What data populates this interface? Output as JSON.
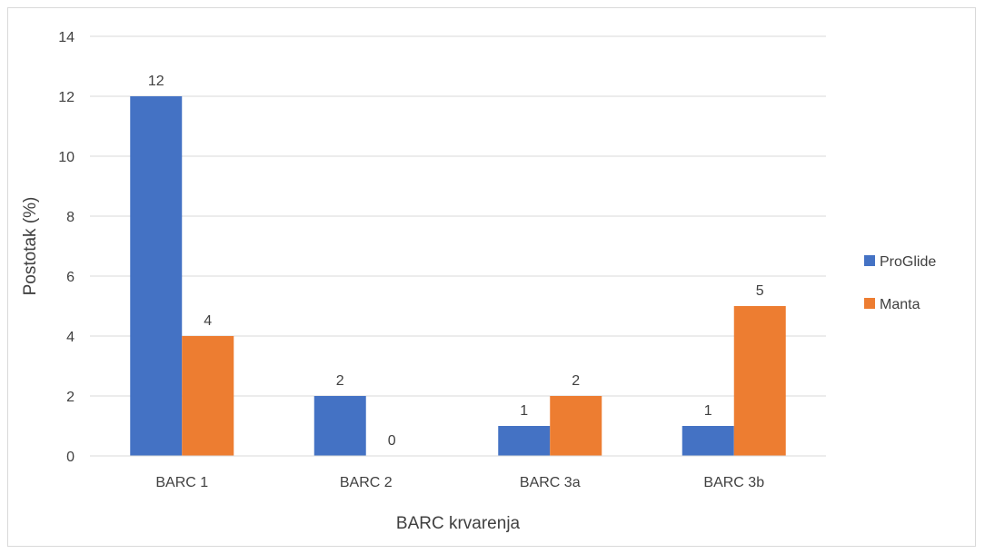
{
  "chart_data": {
    "type": "bar",
    "title": "",
    "xlabel": "BARC krvarenja",
    "ylabel": "Postotak (%)",
    "categories": [
      "BARC 1",
      "BARC 2",
      "BARC 3a",
      "BARC 3b"
    ],
    "series": [
      {
        "name": "ProGlide",
        "color": "#4472C4",
        "values": [
          12,
          2,
          1,
          1
        ]
      },
      {
        "name": "Manta",
        "color": "#ED7D31",
        "values": [
          4,
          0,
          2,
          5
        ]
      }
    ],
    "ylim": [
      0,
      14
    ],
    "yticks": [
      "0",
      "2",
      "4",
      "6",
      "8",
      "10",
      "12",
      "14"
    ],
    "grid": true,
    "legend_position": "right"
  }
}
